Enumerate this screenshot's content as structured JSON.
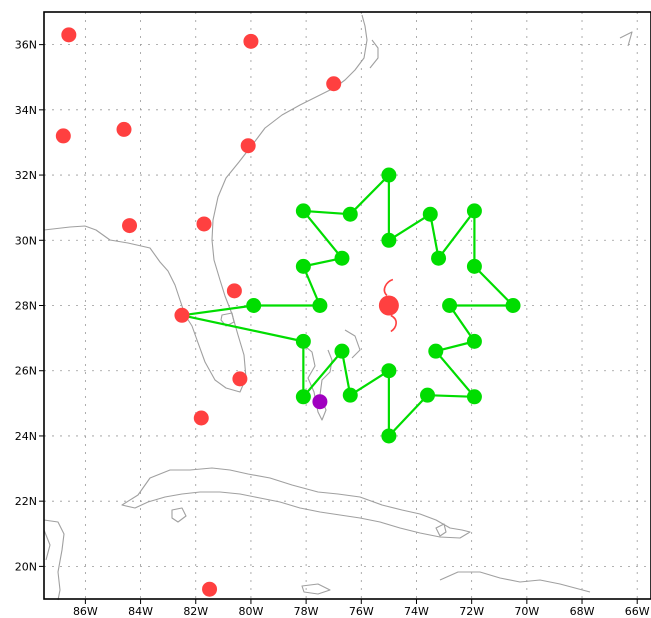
{
  "map": {
    "lon_range": [
      -87.5,
      -65.5
    ],
    "lat_range": [
      19.0,
      37.0
    ],
    "lon_ticks": [
      -86,
      -84,
      -82,
      -80,
      -78,
      -76,
      -74,
      -72,
      -70,
      -68,
      -66
    ],
    "lat_ticks": [
      20,
      22,
      24,
      26,
      28,
      30,
      32,
      34,
      36
    ],
    "lon_labels": [
      "86W",
      "84W",
      "82W",
      "80W",
      "78W",
      "76W",
      "74W",
      "72W",
      "70W",
      "68W",
      "66W"
    ],
    "lat_labels": [
      "20N",
      "22N",
      "24N",
      "26N",
      "28N",
      "30N",
      "32N",
      "34N",
      "36N"
    ],
    "grid": true,
    "colors": {
      "station": "#ff4040",
      "network": "#00dd00",
      "special": "#a000c0",
      "coastline": "#a0a0a0",
      "grid": "#999999"
    },
    "stations": [
      {
        "lon": -86.6,
        "lat": 36.3
      },
      {
        "lon": -80.0,
        "lat": 36.1
      },
      {
        "lon": -77.0,
        "lat": 34.8
      },
      {
        "lon": -84.6,
        "lat": 33.4
      },
      {
        "lon": -86.8,
        "lat": 33.2
      },
      {
        "lon": -80.1,
        "lat": 32.9
      },
      {
        "lon": -84.4,
        "lat": 30.45
      },
      {
        "lon": -81.7,
        "lat": 30.5
      },
      {
        "lon": -80.6,
        "lat": 28.45
      },
      {
        "lon": -82.5,
        "lat": 27.7
      },
      {
        "lon": -80.4,
        "lat": 25.75
      },
      {
        "lon": -81.8,
        "lat": 24.55
      },
      {
        "lon": -81.5,
        "lat": 19.3
      }
    ],
    "storm_center": {
      "lon": -75.0,
      "lat": 28.0
    },
    "special_point": {
      "lon": -77.5,
      "lat": 25.05
    },
    "network_nodes": [
      {
        "lon": -75.0,
        "lat": 32.0
      },
      {
        "lon": -75.0,
        "lat": 30.0
      },
      {
        "lon": -73.5,
        "lat": 30.8
      },
      {
        "lon": -73.2,
        "lat": 29.45
      },
      {
        "lon": -71.9,
        "lat": 30.9
      },
      {
        "lon": -71.9,
        "lat": 29.2
      },
      {
        "lon": -70.5,
        "lat": 28.0
      },
      {
        "lon": -72.8,
        "lat": 28.0
      },
      {
        "lon": -71.9,
        "lat": 26.9
      },
      {
        "lon": -73.3,
        "lat": 26.6
      },
      {
        "lon": -71.9,
        "lat": 25.2
      },
      {
        "lon": -73.6,
        "lat": 25.25
      },
      {
        "lon": -75.0,
        "lat": 24.0
      },
      {
        "lon": -75.0,
        "lat": 26.0
      },
      {
        "lon": -76.4,
        "lat": 25.25
      },
      {
        "lon": -76.7,
        "lat": 26.6
      },
      {
        "lon": -78.1,
        "lat": 25.2
      },
      {
        "lon": -78.1,
        "lat": 26.9
      },
      {
        "lon": -82.5,
        "lat": 27.7
      },
      {
        "lon": -79.9,
        "lat": 28.0
      },
      {
        "lon": -77.5,
        "lat": 28.0
      },
      {
        "lon": -78.1,
        "lat": 29.2
      },
      {
        "lon": -76.7,
        "lat": 29.45
      },
      {
        "lon": -78.1,
        "lat": 30.9
      },
      {
        "lon": -76.4,
        "lat": 30.8
      }
    ],
    "network_segments": [
      [
        0,
        1
      ],
      [
        1,
        2
      ],
      [
        2,
        3
      ],
      [
        3,
        4
      ],
      [
        4,
        5
      ],
      [
        5,
        6
      ],
      [
        6,
        7
      ],
      [
        7,
        8
      ],
      [
        8,
        9
      ],
      [
        9,
        10
      ],
      [
        10,
        11
      ],
      [
        11,
        12
      ],
      [
        12,
        13
      ],
      [
        13,
        14
      ],
      [
        14,
        15
      ],
      [
        15,
        16
      ],
      [
        16,
        17
      ],
      [
        17,
        18
      ],
      [
        18,
        19
      ],
      [
        19,
        20
      ],
      [
        20,
        21
      ],
      [
        21,
        22
      ],
      [
        22,
        23
      ],
      [
        23,
        24
      ],
      [
        24,
        0
      ]
    ]
  }
}
